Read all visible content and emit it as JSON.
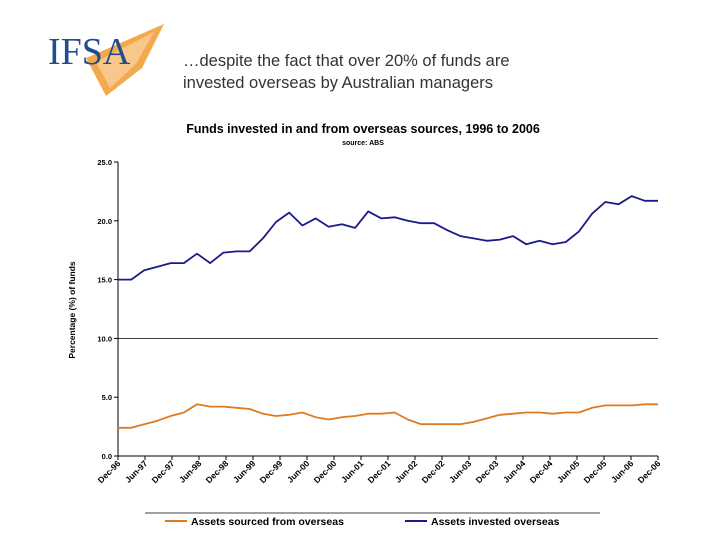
{
  "slide": {
    "logo_text": "IFSA",
    "title_line1": "…despite the fact that over 20% of funds are",
    "title_line2": "invested overseas by Australian managers"
  },
  "colors": {
    "invested": "#1a1a8c",
    "sourced": "#e07a1f",
    "logo_orange": "#f29a2e",
    "logo_blue": "#1f4e8c",
    "text": "#000000"
  },
  "chart_data": {
    "type": "line",
    "title": "Funds invested in and from overseas sources, 1996 to 2006",
    "subtitle": "source: ABS",
    "xlabel": "",
    "ylabel": "Percentage (%) of funds",
    "ylim": [
      0,
      25
    ],
    "yticks": [
      "0.0",
      "5.0",
      "10.0",
      "15.0",
      "20.0",
      "25.0"
    ],
    "gridlines": [
      10
    ],
    "x_ticks": [
      "Dec-96",
      "Jun-97",
      "Dec-97",
      "Jun-98",
      "Dec-98",
      "Jun-99",
      "Dec-99",
      "Jun-00",
      "Dec-00",
      "Jun-01",
      "Dec-01",
      "Jun-02",
      "Dec-02",
      "Jun-03",
      "Dec-03",
      "Jun-04",
      "Dec-04",
      "Jun-05",
      "Dec-05",
      "Jun-06",
      "Dec-06"
    ],
    "legend_position": "bottom",
    "series": [
      {
        "name": "Assets sourced from overseas",
        "color": "#e07a1f",
        "values": [
          2.4,
          2.4,
          2.7,
          3.0,
          3.4,
          3.7,
          4.4,
          4.2,
          4.2,
          4.1,
          4.0,
          3.6,
          3.4,
          3.5,
          3.7,
          3.3,
          3.1,
          3.3,
          3.4,
          3.6,
          3.6,
          3.7,
          3.1,
          2.7,
          2.7,
          2.7,
          2.7,
          2.9,
          3.2,
          3.5,
          3.6,
          3.7,
          3.7,
          3.6,
          3.7,
          3.7,
          4.1,
          4.3,
          4.3,
          4.3,
          4.4,
          4.4
        ]
      },
      {
        "name": "Assets invested overseas",
        "color": "#1a1a8c",
        "values": [
          15.0,
          15.0,
          15.8,
          16.1,
          16.4,
          16.4,
          17.2,
          16.4,
          17.3,
          17.4,
          17.4,
          18.5,
          19.9,
          20.7,
          19.6,
          20.2,
          19.5,
          19.7,
          19.4,
          20.8,
          20.2,
          20.3,
          20.0,
          19.8,
          19.8,
          19.2,
          18.7,
          18.5,
          18.3,
          18.4,
          18.7,
          18.0,
          18.3,
          18.0,
          18.2,
          19.1,
          20.6,
          21.6,
          21.4,
          22.1,
          21.7,
          21.7
        ]
      }
    ]
  }
}
